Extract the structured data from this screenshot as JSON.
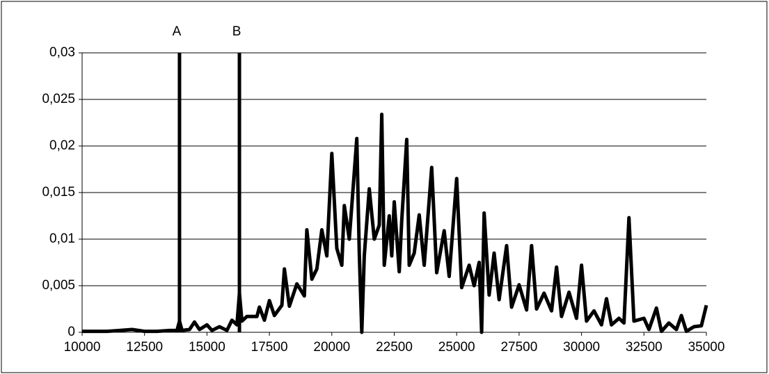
{
  "chart_data": {
    "type": "line",
    "x": [
      10000,
      11000,
      11500,
      12000,
      12500,
      13000,
      13500,
      13800,
      13900,
      14000,
      14300,
      14500,
      14700,
      15000,
      15200,
      15500,
      15800,
      16000,
      16200,
      16300,
      16400,
      16600,
      17000,
      17100,
      17300,
      17500,
      17700,
      18000,
      18100,
      18300,
      18600,
      18900,
      19000,
      19200,
      19400,
      19600,
      19800,
      20000,
      20200,
      20400,
      20500,
      20700,
      21000,
      21100,
      21200,
      21300,
      21500,
      21700,
      21900,
      22000,
      22100,
      22300,
      22400,
      22500,
      22700,
      22800,
      23000,
      23100,
      23300,
      23500,
      23700,
      24000,
      24200,
      24500,
      24700,
      25000,
      25200,
      25500,
      25700,
      25900,
      26000,
      26100,
      26300,
      26500,
      26700,
      27000,
      27200,
      27500,
      27800,
      28000,
      28200,
      28500,
      28800,
      29000,
      29200,
      29500,
      29800,
      30000,
      30200,
      30500,
      30800,
      31000,
      31200,
      31500,
      31700,
      31900,
      32100,
      32500,
      32700,
      33000,
      33200,
      33500,
      33800,
      34000,
      34200,
      34500,
      34800,
      35000
    ],
    "series": [
      {
        "color": "#000000",
        "values": [
          0.0001,
          0.0001,
          0.0002,
          0.0003,
          0.0001,
          0.0001,
          0.0002,
          0.0002,
          0.0012,
          0.0002,
          0.0003,
          0.0011,
          0.0003,
          0.0008,
          0.0002,
          0.0006,
          0.0002,
          0.0013,
          0.0008,
          0.0042,
          0.0012,
          0.0017,
          0.0017,
          0.0027,
          0.0013,
          0.0034,
          0.0018,
          0.0029,
          0.0068,
          0.0028,
          0.0052,
          0.0039,
          0.011,
          0.0057,
          0.0068,
          0.011,
          0.0082,
          0.0192,
          0.009,
          0.0072,
          0.0136,
          0.01,
          0.0208,
          0.0085,
          0,
          0.0082,
          0.0154,
          0.01,
          0.0115,
          0.0234,
          0.0072,
          0.0125,
          0.0082,
          0.014,
          0.0065,
          0.012,
          0.0207,
          0.0072,
          0.0085,
          0.0126,
          0.0072,
          0.0177,
          0.0064,
          0.0109,
          0.006,
          0.0165,
          0.0048,
          0.0072,
          0.005,
          0.0075,
          0,
          0.0128,
          0.004,
          0.0085,
          0.0035,
          0.0093,
          0.0027,
          0.0051,
          0.0024,
          0.0093,
          0.0025,
          0.0042,
          0.0023,
          0.007,
          0.0017,
          0.0043,
          0.0015,
          0.0072,
          0.0012,
          0.0023,
          0.0008,
          0.0036,
          0.0008,
          0.0015,
          0.001,
          0.0123,
          0.0012,
          0.0015,
          0.0003,
          0.0026,
          0.0001,
          0.001,
          0.0003,
          0.0018,
          0.0001,
          0.0006,
          0.0007,
          0.0029
        ]
      }
    ],
    "xlim": [
      10000,
      35000
    ],
    "xticks": [
      10000,
      12500,
      15000,
      17500,
      20000,
      22500,
      25000,
      27500,
      30000,
      32500,
      35000
    ],
    "ylim": [
      0,
      0.03
    ],
    "yticks": [
      0,
      {
        "value": 0.005,
        "label": "0,005"
      },
      {
        "value": 0.01,
        "label": "0,01"
      },
      {
        "value": 0.015,
        "label": "0,015"
      },
      {
        "value": 0.02,
        "label": "0,02"
      },
      {
        "value": 0.025,
        "label": "0,025"
      },
      {
        "value": 0.03,
        "label": "0,03"
      }
    ],
    "grid": true,
    "annotations": [
      {
        "label": "A",
        "x": 13900
      },
      {
        "label": "B",
        "x": 16300
      }
    ]
  }
}
